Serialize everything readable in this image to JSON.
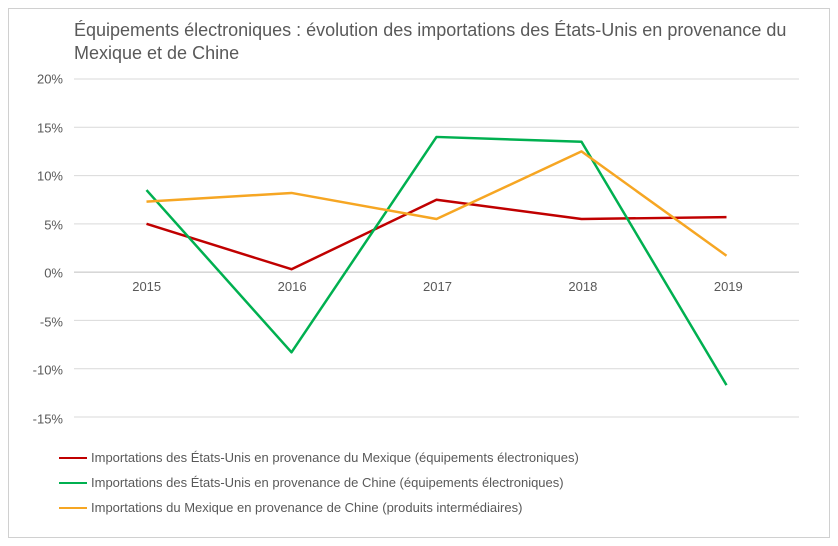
{
  "chart": {
    "type": "line",
    "title": "Équipements électroniques : évolution des importations des États-Unis en provenance du Mexique et de Chine",
    "title_fontsize": 18,
    "title_color": "#595959",
    "background_color": "#ffffff",
    "border_color": "#d0d0d0",
    "axis_label_color": "#595959",
    "axis_label_fontsize": 13,
    "grid_color": "#d9d9d9",
    "zero_line_color": "#bfbfbf",
    "x": {
      "categories": [
        "2015",
        "2016",
        "2017",
        "2018",
        "2019"
      ]
    },
    "y": {
      "min": -15,
      "max": 20,
      "tick_step": 5,
      "suffix": "%",
      "ticks": [
        20,
        15,
        10,
        5,
        0,
        -5,
        -10,
        -15
      ]
    },
    "series": [
      {
        "name": "Importations des États-Unis en provenance du Mexique (équipements électroniques)",
        "color": "#c00000",
        "line_width": 2.5,
        "values": [
          5.0,
          0.3,
          7.5,
          5.5,
          5.7
        ]
      },
      {
        "name": "Importations des États-Unis en provenance de Chine (équipements électroniques)",
        "color": "#00b050",
        "line_width": 2.5,
        "values": [
          8.5,
          -8.3,
          14.0,
          13.5,
          -11.7
        ]
      },
      {
        "name": "Importations du Mexique en provenance de Chine (produits intermédiaires)",
        "color": "#f6a623",
        "line_width": 2.5,
        "values": [
          7.3,
          8.2,
          5.5,
          12.5,
          1.7
        ]
      }
    ]
  }
}
